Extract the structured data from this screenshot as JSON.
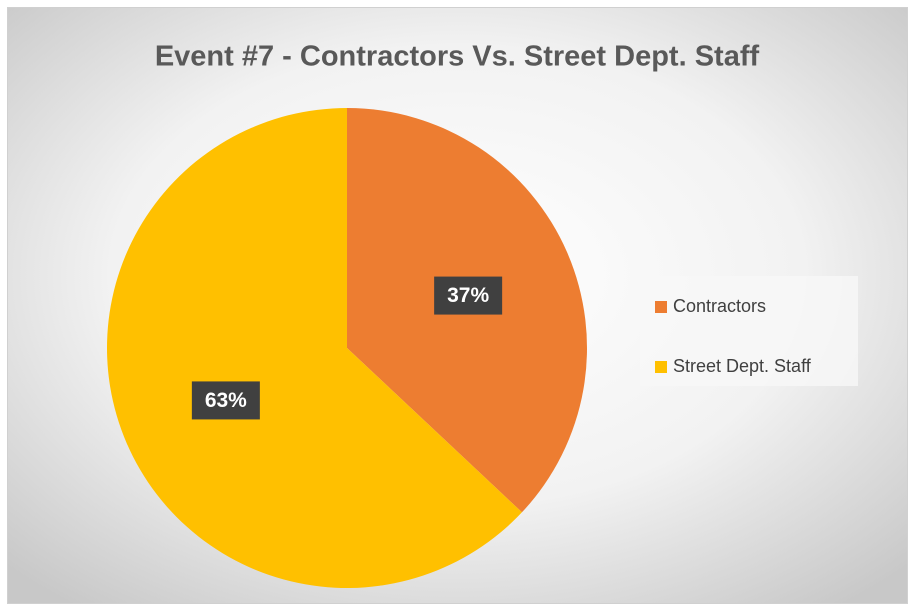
{
  "chart_data": {
    "type": "pie",
    "title": "Event #7 - Contractors Vs. Street Dept. Staff",
    "categories": [
      "Contractors",
      "Street Dept. Staff"
    ],
    "values": [
      37,
      63
    ],
    "value_labels": [
      "37%",
      "63%"
    ],
    "colors": [
      "#ED7D31",
      "#FFC000"
    ],
    "legend": "right"
  }
}
